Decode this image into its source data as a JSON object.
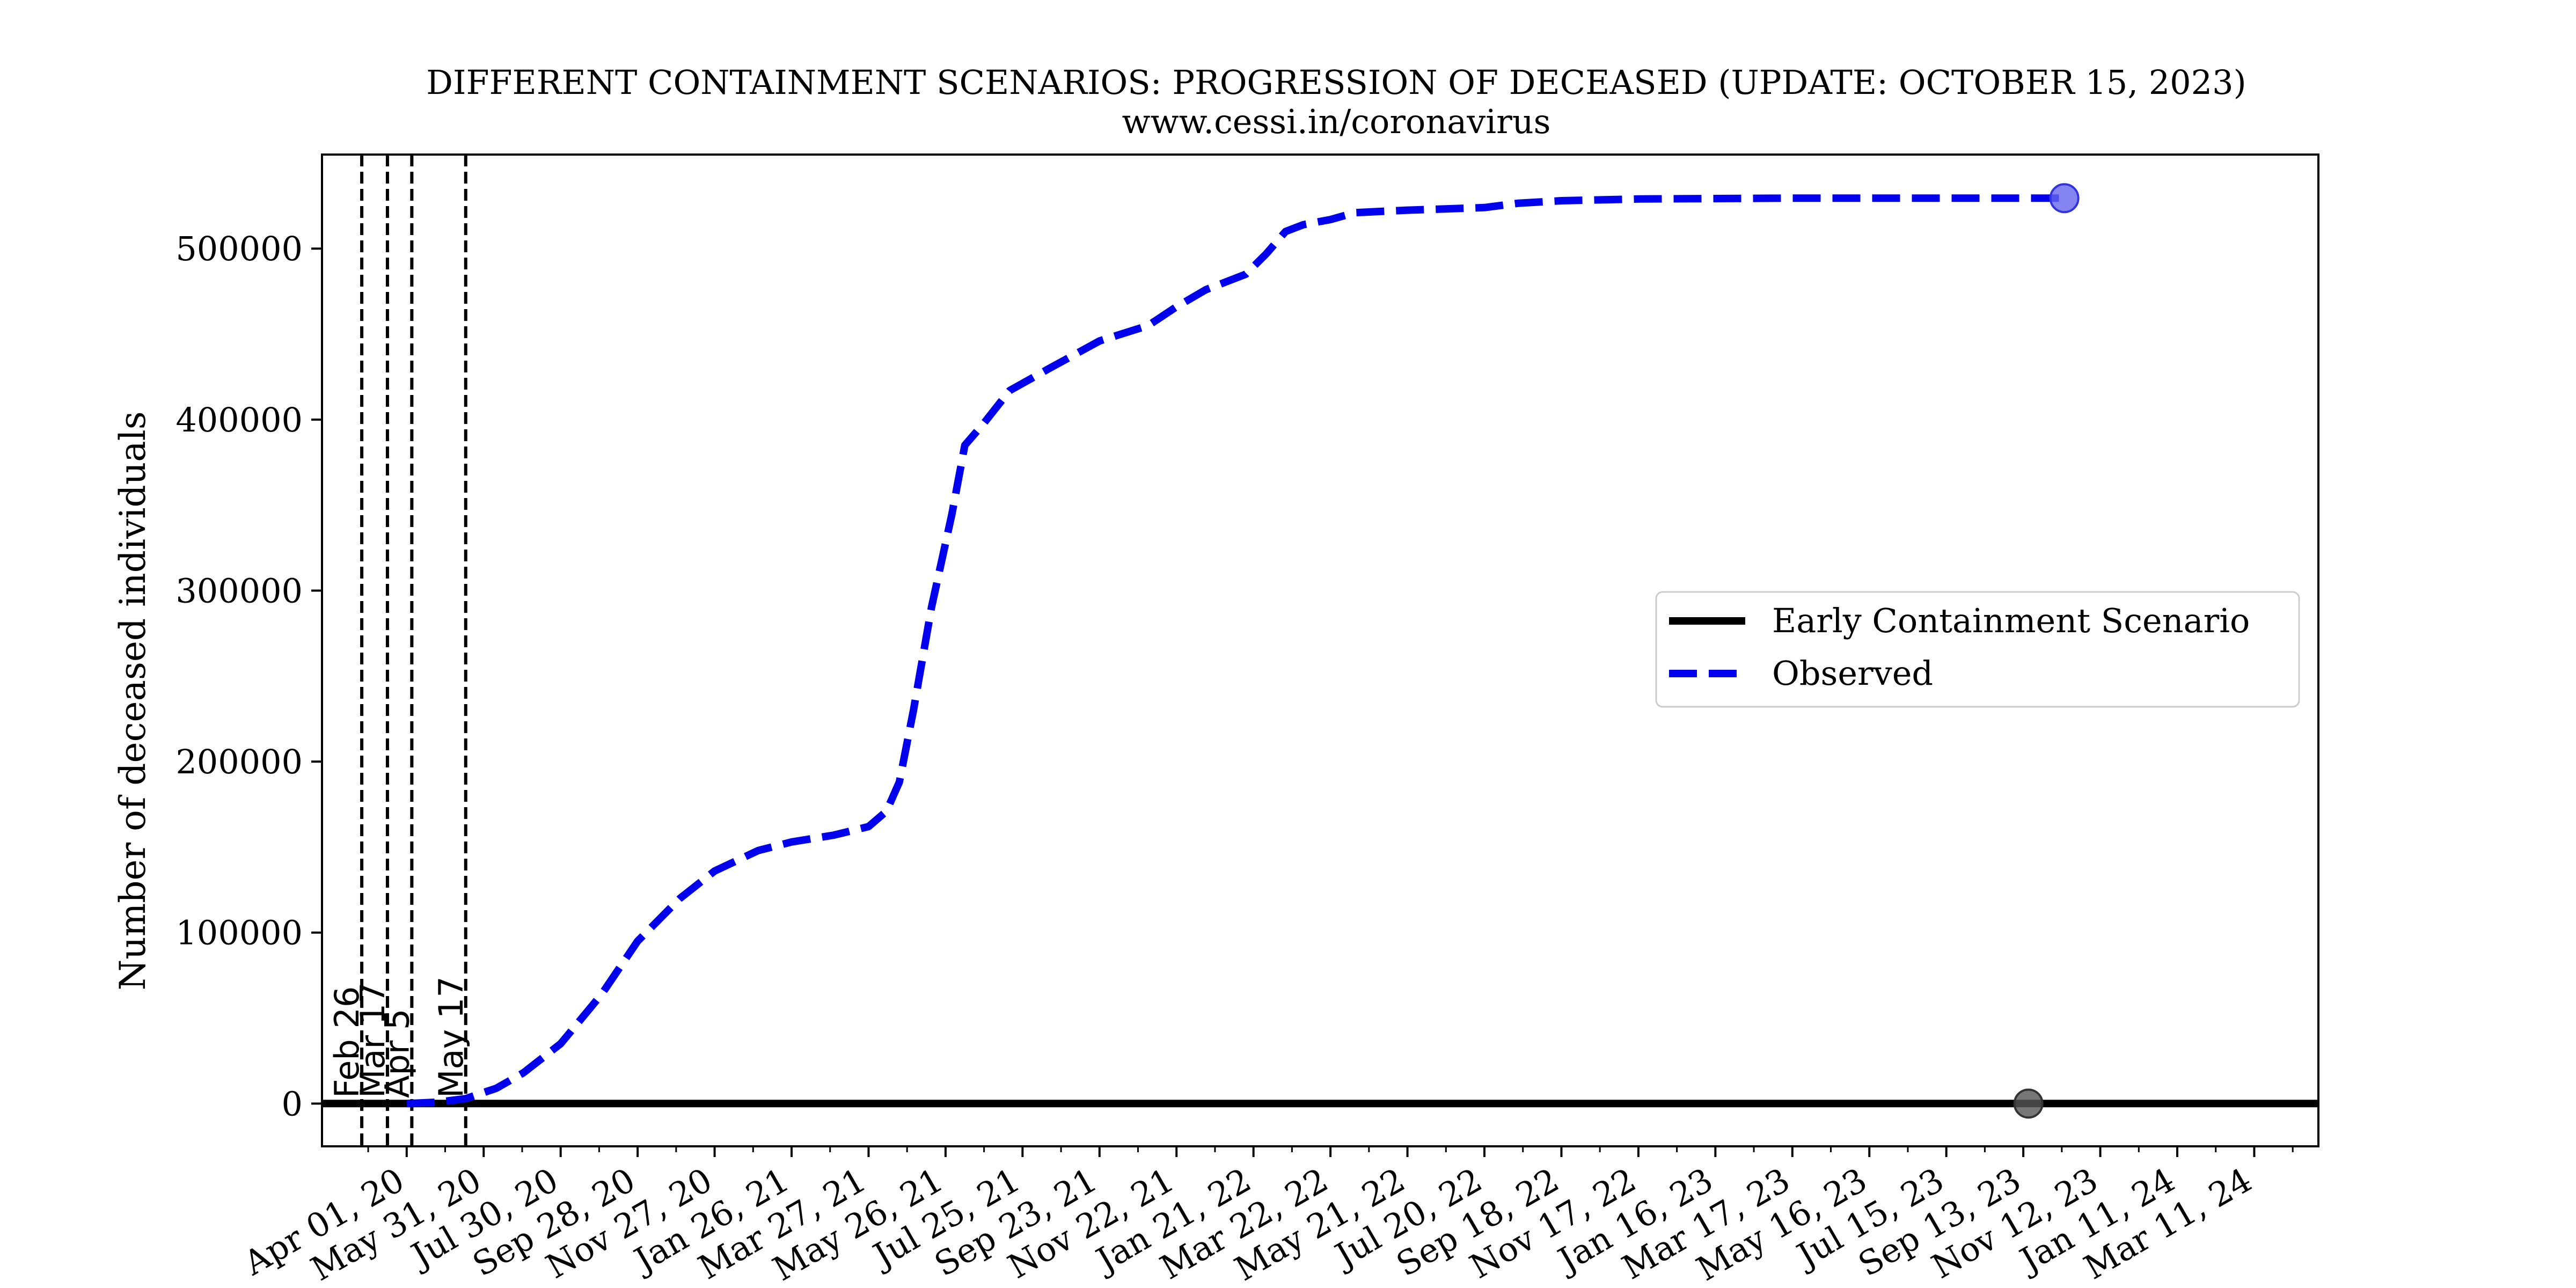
{
  "chart_data": {
    "type": "line",
    "title": "DIFFERENT CONTAINMENT SCENARIOS: PROGRESSION OF DECEASED (UPDATE: OCTOBER 15, 2023)",
    "subtitle": "www.cessi.in/coronavirus",
    "xlabel": "",
    "ylabel": "Number of deceased individuals",
    "xlim": [
      "2020-01-26",
      "2024-04-30"
    ],
    "ylim": [
      -25000,
      555000
    ],
    "y_ticks": [
      0,
      100000,
      200000,
      300000,
      400000,
      500000
    ],
    "x_ticks": [
      {
        "date": "2020-04-01",
        "label": "Apr 01, 20"
      },
      {
        "date": "2020-05-31",
        "label": "May 31, 20"
      },
      {
        "date": "2020-07-30",
        "label": "Jul 30, 20"
      },
      {
        "date": "2020-09-28",
        "label": "Sep 28, 20"
      },
      {
        "date": "2020-11-27",
        "label": "Nov 27, 20"
      },
      {
        "date": "2021-01-26",
        "label": "Jan 26, 21"
      },
      {
        "date": "2021-03-27",
        "label": "Mar 27, 21"
      },
      {
        "date": "2021-05-26",
        "label": "May 26, 21"
      },
      {
        "date": "2021-07-25",
        "label": "Jul 25, 21"
      },
      {
        "date": "2021-09-23",
        "label": "Sep 23, 21"
      },
      {
        "date": "2021-11-22",
        "label": "Nov 22, 21"
      },
      {
        "date": "2022-01-21",
        "label": "Jan 21, 22"
      },
      {
        "date": "2022-03-22",
        "label": "Mar 22, 22"
      },
      {
        "date": "2022-05-21",
        "label": "May 21, 22"
      },
      {
        "date": "2022-07-20",
        "label": "Jul 20, 22"
      },
      {
        "date": "2022-09-18",
        "label": "Sep 18, 22"
      },
      {
        "date": "2022-11-17",
        "label": "Nov 17, 22"
      },
      {
        "date": "2023-01-16",
        "label": "Jan 16, 23"
      },
      {
        "date": "2023-03-17",
        "label": "Mar 17, 23"
      },
      {
        "date": "2023-05-16",
        "label": "May 16, 23"
      },
      {
        "date": "2023-07-15",
        "label": "Jul 15, 23"
      },
      {
        "date": "2023-09-13",
        "label": "Sep 13, 23"
      },
      {
        "date": "2023-11-12",
        "label": "Nov 12, 23"
      },
      {
        "date": "2024-01-11",
        "label": "Jan 11, 24"
      },
      {
        "date": "2024-03-11",
        "label": "Mar 11, 24"
      }
    ],
    "vlines": [
      {
        "date": "2020-02-26",
        "label": "Feb 26"
      },
      {
        "date": "2020-03-17",
        "label": "Mar 17"
      },
      {
        "date": "2020-04-05",
        "label": "Apr 5"
      },
      {
        "date": "2020-05-17",
        "label": "May 17"
      }
    ],
    "series": [
      {
        "name": "Early Containment Scenario",
        "color": "#000000",
        "style": "solid",
        "points": [
          {
            "x": "2020-01-26",
            "y": 0
          },
          {
            "x": "2024-04-30",
            "y": 0
          }
        ],
        "marker": {
          "x": "2023-09-17",
          "y": 0,
          "color": "#555555"
        }
      },
      {
        "name": "Observed",
        "color": "#0000ee",
        "style": "dashed",
        "points": [
          {
            "x": "2020-04-01",
            "y": 0
          },
          {
            "x": "2020-04-25",
            "y": 800
          },
          {
            "x": "2020-05-17",
            "y": 2900
          },
          {
            "x": "2020-06-10",
            "y": 9000
          },
          {
            "x": "2020-07-01",
            "y": 18000
          },
          {
            "x": "2020-07-30",
            "y": 35000
          },
          {
            "x": "2020-08-31",
            "y": 64000
          },
          {
            "x": "2020-09-28",
            "y": 95000
          },
          {
            "x": "2020-10-31",
            "y": 120000
          },
          {
            "x": "2020-11-27",
            "y": 136000
          },
          {
            "x": "2020-12-31",
            "y": 148000
          },
          {
            "x": "2021-01-26",
            "y": 153000
          },
          {
            "x": "2021-02-28",
            "y": 157000
          },
          {
            "x": "2021-03-27",
            "y": 162000
          },
          {
            "x": "2021-04-10",
            "y": 171000
          },
          {
            "x": "2021-04-20",
            "y": 188000
          },
          {
            "x": "2021-05-01",
            "y": 230000
          },
          {
            "x": "2021-05-15",
            "y": 290000
          },
          {
            "x": "2021-05-31",
            "y": 345000
          },
          {
            "x": "2021-06-10",
            "y": 385000
          },
          {
            "x": "2021-06-25",
            "y": 398000
          },
          {
            "x": "2021-07-15",
            "y": 417000
          },
          {
            "x": "2021-08-15",
            "y": 430000
          },
          {
            "x": "2021-09-23",
            "y": 446000
          },
          {
            "x": "2021-10-31",
            "y": 455000
          },
          {
            "x": "2021-11-22",
            "y": 466000
          },
          {
            "x": "2021-12-15",
            "y": 476000
          },
          {
            "x": "2022-01-15",
            "y": 485000
          },
          {
            "x": "2022-01-31",
            "y": 497000
          },
          {
            "x": "2022-02-15",
            "y": 510000
          },
          {
            "x": "2022-03-01",
            "y": 514000
          },
          {
            "x": "2022-03-22",
            "y": 517000
          },
          {
            "x": "2022-04-10",
            "y": 521000
          },
          {
            "x": "2022-05-21",
            "y": 522500
          },
          {
            "x": "2022-07-20",
            "y": 524000
          },
          {
            "x": "2022-08-15",
            "y": 526500
          },
          {
            "x": "2022-09-18",
            "y": 528000
          },
          {
            "x": "2022-11-17",
            "y": 529000
          },
          {
            "x": "2023-03-17",
            "y": 529500
          },
          {
            "x": "2023-10-15",
            "y": 529500
          }
        ],
        "marker": {
          "x": "2023-10-15",
          "y": 529500,
          "color": "#6666ee"
        }
      }
    ],
    "legend": {
      "placement": "center-right"
    },
    "grid": false
  }
}
